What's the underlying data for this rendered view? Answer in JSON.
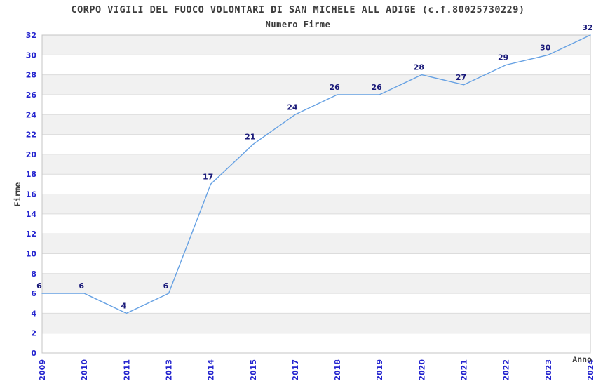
{
  "chart_data": {
    "type": "line",
    "title": "CORPO VIGILI DEL FUOCO VOLONTARI DI SAN MICHELE ALL ADIGE (c.f.80025730229)",
    "subtitle": "Numero Firme",
    "xlabel": "Anno",
    "ylabel": "Firme",
    "categories": [
      "2009",
      "2010",
      "2011",
      "2013",
      "2014",
      "2015",
      "2017",
      "2018",
      "2019",
      "2020",
      "2021",
      "2022",
      "2023",
      "2024"
    ],
    "values": [
      6,
      6,
      4,
      6,
      17,
      21,
      24,
      26,
      26,
      28,
      27,
      29,
      30,
      32
    ],
    "ylim": [
      0,
      32
    ],
    "ytick_step": 2,
    "yticks": [
      0,
      2,
      4,
      6,
      8,
      10,
      12,
      14,
      16,
      18,
      20,
      22,
      24,
      26,
      28,
      30,
      32
    ],
    "grid": "horizontal-bands-every-2-units",
    "legend": "none",
    "markers": "none",
    "data_labels_shown": true,
    "x_tick_rotation_deg": -90,
    "colors": {
      "line": "#66A1E3",
      "tick_label": "#2525CF",
      "data_label": "#1B1B7A",
      "band_gray": "#F1F1F1",
      "band_white": "#FFFFFF",
      "gridline": "#DCDCDC",
      "plot_border": "#C4C4C4",
      "text": "#3C3C3C",
      "background": "#FFFFFF"
    }
  }
}
